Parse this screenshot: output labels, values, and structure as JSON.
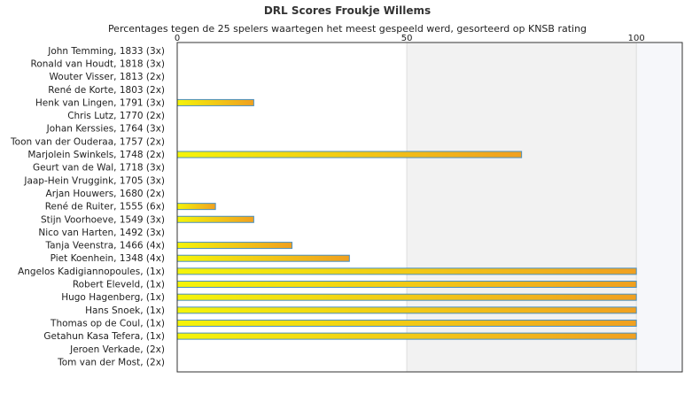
{
  "chart_data": {
    "type": "bar",
    "orientation": "horizontal",
    "title": "DRL Scores Froukje Willems",
    "subtitle": "Percentages tegen de 25 spelers waartegen het meest gespeeld werd, gesorteerd op KNSB rating",
    "categories": [
      "John Temming, 1833 (3x)",
      "Ronald van Houdt, 1818 (3x)",
      "Wouter Visser, 1813 (2x)",
      "René de Korte, 1803 (2x)",
      "Henk van Lingen, 1791 (3x)",
      "Chris Lutz, 1770 (2x)",
      "Johan Kerssies, 1764 (3x)",
      "Toon van der Ouderaa, 1757 (2x)",
      "Marjolein Swinkels, 1748 (2x)",
      "Geurt van de Wal, 1718 (3x)",
      "Jaap-Hein Vruggink, 1705 (3x)",
      "Arjan Houwers, 1680 (2x)",
      "René de Ruiter, 1555 (6x)",
      "Stijn Voorhoeve, 1549 (3x)",
      "Nico van Harten, 1492 (3x)",
      "Tanja Veenstra, 1466 (4x)",
      "Piet Koenhein, 1348 (4x)",
      "Angelos Kadigiannopoules, (1x)",
      "Robert Eleveld, (1x)",
      "Hugo Hagenberg, (1x)",
      "Hans Snoek, (1x)",
      "Thomas op de Coul, (1x)",
      "Getahun Kasa Tefera, (1x)",
      "Jeroen Verkade, (2x)",
      "Tom van der Most, (2x)"
    ],
    "values": [
      0,
      0,
      0,
      0,
      16.67,
      0,
      0,
      0,
      75,
      0,
      0,
      0,
      8.33,
      16.67,
      0,
      25,
      37.5,
      100,
      100,
      100,
      100,
      100,
      100,
      0,
      0
    ],
    "xlim": [
      0,
      110
    ],
    "xticks": [
      0,
      50,
      100
    ],
    "xtick_labels": [
      "0",
      "50",
      "100"
    ],
    "x_axis_position": "top",
    "grid": "vertical bands",
    "legend": "none",
    "colors": {
      "bar_start": "#f4f40a",
      "bar_end": "#f0a020",
      "bar_stroke": "#4a90c0",
      "band_light": "#f2f2f2",
      "band_lighter": "#f6f7fa",
      "axis": "#333333"
    }
  }
}
